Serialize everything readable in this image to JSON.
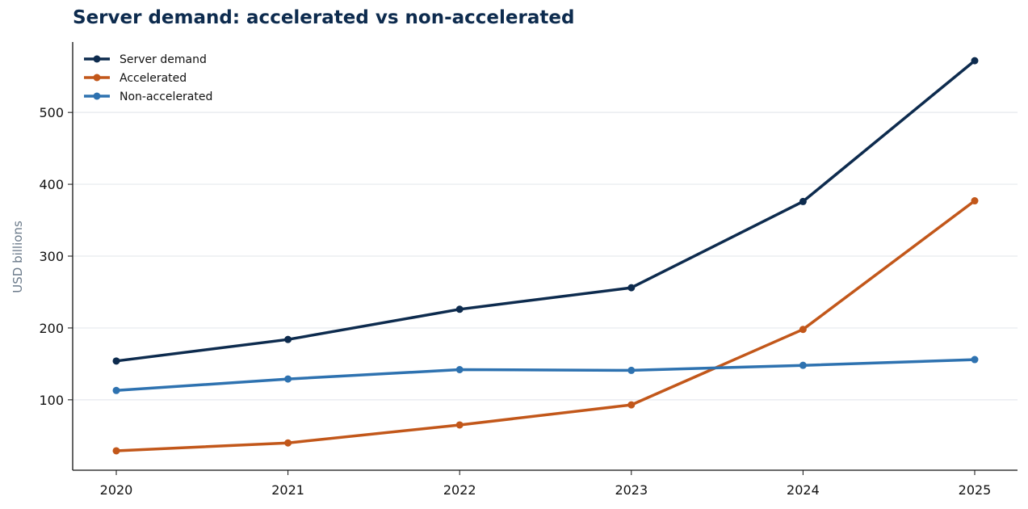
{
  "chart_data": {
    "type": "line",
    "title": "Server demand: accelerated vs non-accelerated",
    "xlabel": "",
    "ylabel": "USD billions",
    "x": [
      "2020",
      "2021",
      "2022",
      "2023",
      "2024",
      "2025"
    ],
    "ylim": [
      2,
      598
    ],
    "yticks": [
      100,
      200,
      300,
      400,
      500
    ],
    "grid": "horizontal",
    "legend_position": "top-left",
    "series": [
      {
        "name": "Server demand",
        "color": "#0d2b4e",
        "values": [
          154,
          184,
          226,
          256,
          376,
          572
        ]
      },
      {
        "name": "Accelerated",
        "color": "#c2571a",
        "values": [
          29,
          40,
          65,
          93,
          198,
          377
        ]
      },
      {
        "name": "Non-accelerated",
        "color": "#2e72b0",
        "values": [
          113,
          129,
          142,
          141,
          148,
          156
        ]
      }
    ]
  }
}
